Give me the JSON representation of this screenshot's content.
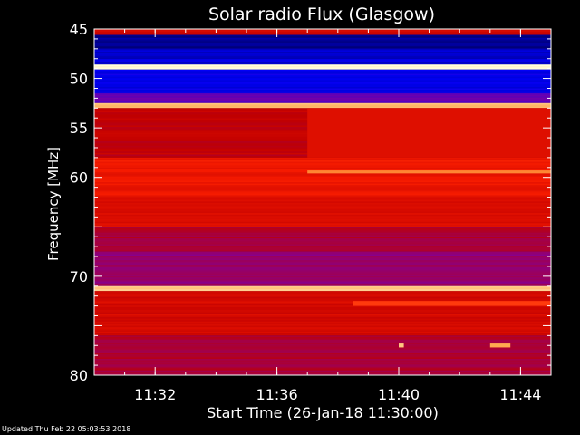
{
  "chart_data": {
    "type": "heatmap",
    "title": "Solar radio Flux (Glasgow)",
    "xlabel": "Start Time (26-Jan-18 11:30:00)",
    "ylabel": "Frequency [MHz]",
    "xlim": [
      "11:30:00",
      "11:45:00"
    ],
    "ylim": [
      45,
      80
    ],
    "y_axis_inverted": true,
    "y_ticks": [
      45,
      50,
      55,
      60,
      65,
      70,
      75,
      80
    ],
    "y_tick_labels": [
      "45",
      "50",
      "55",
      "60",
      "",
      "70",
      "",
      "80"
    ],
    "x_ticks": [
      "11:32",
      "11:36",
      "11:40",
      "11:44"
    ],
    "colormap": [
      "#000060",
      "#0000ff",
      "#8000a0",
      "#c00000",
      "#ff2000",
      "#ffa040",
      "#ffffe0"
    ],
    "bands": [
      {
        "freq_from": 45.0,
        "freq_to": 45.6,
        "level": 0.55
      },
      {
        "freq_from": 45.6,
        "freq_to": 47.0,
        "level": 0.05
      },
      {
        "freq_from": 47.0,
        "freq_to": 48.6,
        "level": 0.12
      },
      {
        "freq_from": 48.6,
        "freq_to": 49.1,
        "level": 1.0
      },
      {
        "freq_from": 49.1,
        "freq_to": 51.5,
        "level": 0.15
      },
      {
        "freq_from": 51.5,
        "freq_to": 52.5,
        "level": 0.3
      },
      {
        "freq_from": 52.5,
        "freq_to": 53.0,
        "level": 0.9
      },
      {
        "freq_from": 53.0,
        "freq_to": 58.0,
        "level": 0.5
      },
      {
        "freq_from": 58.0,
        "freq_to": 62.0,
        "level": 0.62
      },
      {
        "freq_from": 62.0,
        "freq_to": 65.0,
        "level": 0.58
      },
      {
        "freq_from": 65.0,
        "freq_to": 67.5,
        "level": 0.45
      },
      {
        "freq_from": 67.5,
        "freq_to": 71.0,
        "level": 0.38
      },
      {
        "freq_from": 71.0,
        "freq_to": 71.5,
        "level": 0.9
      },
      {
        "freq_from": 71.5,
        "freq_to": 76.0,
        "level": 0.55
      },
      {
        "freq_from": 76.0,
        "freq_to": 80.0,
        "level": 0.45
      }
    ],
    "features": [
      {
        "time": "11:37:00",
        "time_to": "11:45:00",
        "freq_from": 53.0,
        "freq_to": 58.0,
        "level": 0.58,
        "note": "brightening after 11:37"
      },
      {
        "time": "11:37:00",
        "time_to": "11:45:00",
        "freq_from": 59.3,
        "freq_to": 59.6,
        "level": 0.8
      },
      {
        "time": "11:38:30",
        "time_to": "11:45:00",
        "freq_from": 72.5,
        "freq_to": 73.0,
        "level": 0.7
      },
      {
        "time": "11:40:00",
        "time_to": "11:40:10",
        "freq_from": 76.8,
        "freq_to": 77.2,
        "level": 0.9
      },
      {
        "time": "11:43:00",
        "time_to": "11:43:40",
        "freq_from": 76.8,
        "freq_to": 77.2,
        "level": 0.85
      }
    ]
  },
  "footer": {
    "updated_text": "Updated Thu Feb 22 05:03:53 2018"
  }
}
